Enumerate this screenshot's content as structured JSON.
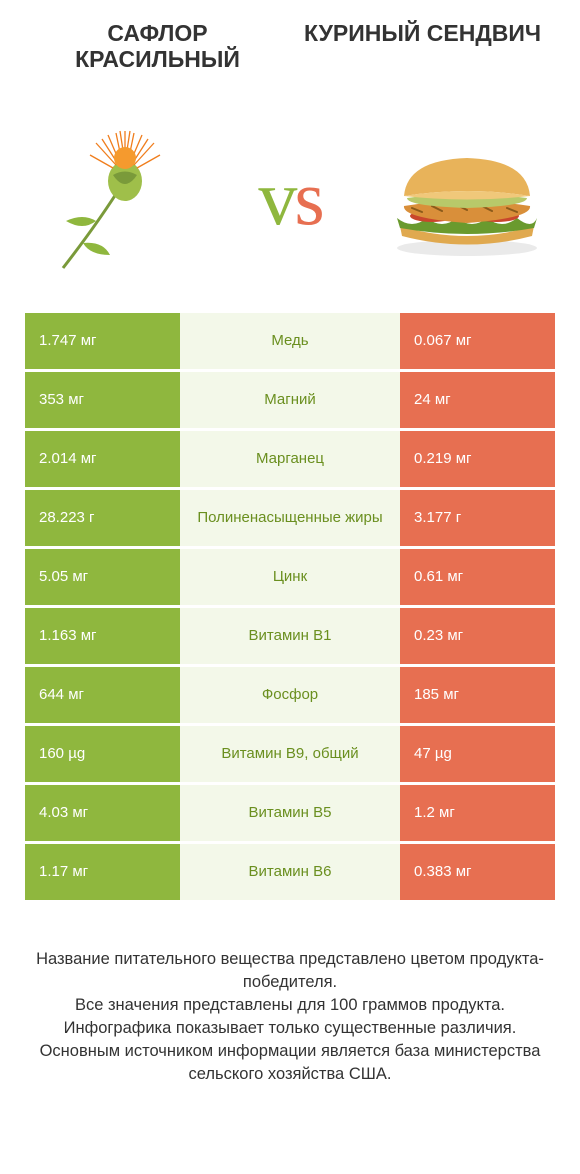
{
  "colors": {
    "green": "#8fb73e",
    "orange": "#e76f51",
    "mid_bg": "#f3f8e9",
    "mid_text": "#6a8f1f",
    "vs_green": "#8fb73e",
    "vs_orange": "#e76f51",
    "text": "#333333"
  },
  "header": {
    "left_title": "САФЛОР КРАСИЛЬНЫЙ",
    "right_title": "КУРИНЫЙ СЕНДВИЧ"
  },
  "vs_label": "vs",
  "rows": [
    {
      "left": "1.747 мг",
      "mid": "Медь",
      "right": "0.067 мг",
      "winner": "left"
    },
    {
      "left": "353 мг",
      "mid": "Магний",
      "right": "24 мг",
      "winner": "left"
    },
    {
      "left": "2.014 мг",
      "mid": "Марганец",
      "right": "0.219 мг",
      "winner": "left"
    },
    {
      "left": "28.223 г",
      "mid": "Полиненасыщенные жиры",
      "right": "3.177 г",
      "winner": "left"
    },
    {
      "left": "5.05 мг",
      "mid": "Цинк",
      "right": "0.61 мг",
      "winner": "left"
    },
    {
      "left": "1.163 мг",
      "mid": "Витамин B1",
      "right": "0.23 мг",
      "winner": "left"
    },
    {
      "left": "644 мг",
      "mid": "Фосфор",
      "right": "185 мг",
      "winner": "left"
    },
    {
      "left": "160 µg",
      "mid": "Витамин B9, общий",
      "right": "47 µg",
      "winner": "left"
    },
    {
      "left": "4.03 мг",
      "mid": "Витамин B5",
      "right": "1.2 мг",
      "winner": "left"
    },
    {
      "left": "1.17 мг",
      "mid": "Витамин B6",
      "right": "0.383 мг",
      "winner": "left"
    }
  ],
  "footer_lines": [
    "Название питательного вещества представлено цветом продукта-победителя.",
    "Все значения представлены для 100 граммов продукта.",
    "Инфографика показывает только существенные различия.",
    "Основным источником информации является база министерства сельского хозяйства США."
  ]
}
